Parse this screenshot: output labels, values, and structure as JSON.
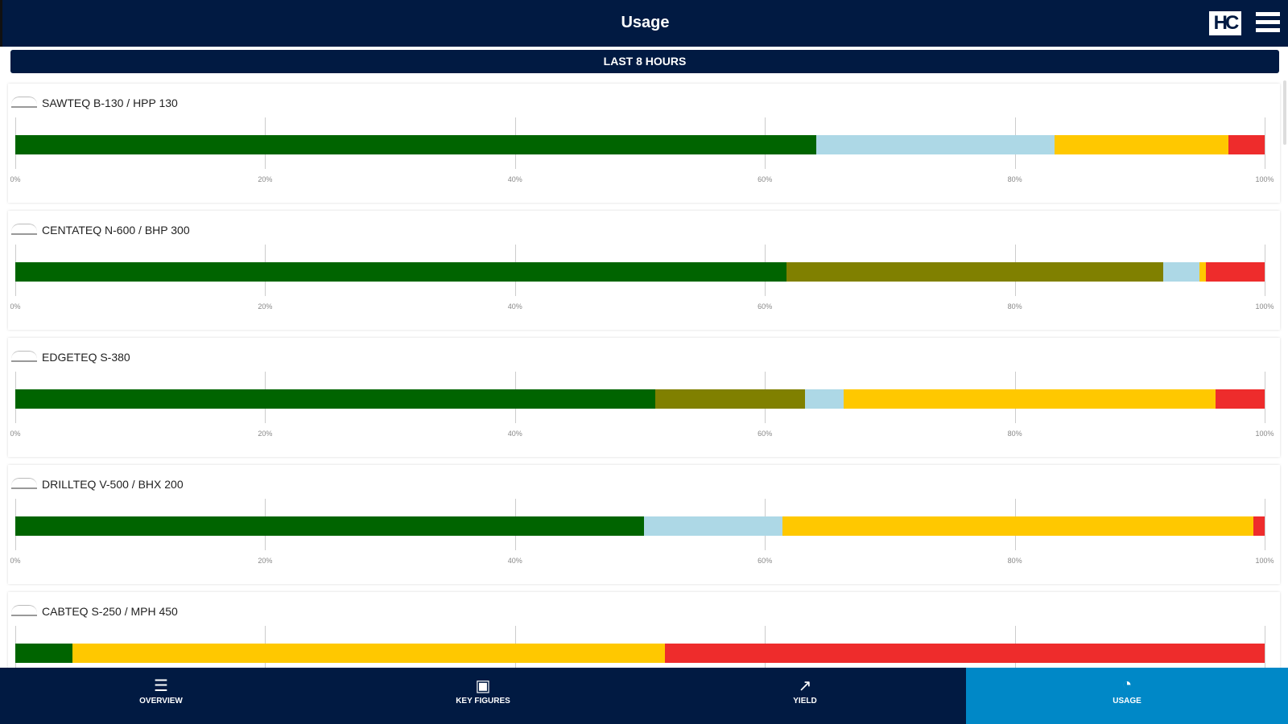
{
  "header": {
    "title": "Usage",
    "logo": "HC"
  },
  "banner": "LAST 8 HOURS",
  "ticks": [
    "0%",
    "20%",
    "40%",
    "60%",
    "80%",
    "100%"
  ],
  "colors": {
    "green": "#006400",
    "olive": "#808000",
    "lightblue": "#add8e6",
    "yellow": "#ffc800",
    "red": "#ee2c2c"
  },
  "machines": [
    {
      "name": "SAWTEQ B-130 / HPP 130",
      "segments": [
        {
          "color": "green",
          "pct": 64.1
        },
        {
          "color": "lightblue",
          "pct": 19.1
        },
        {
          "color": "yellow",
          "pct": 13.9
        },
        {
          "color": "red",
          "pct": 2.9
        }
      ]
    },
    {
      "name": "CENTATEQ N-600 / BHP 300",
      "segments": [
        {
          "color": "green",
          "pct": 61.7
        },
        {
          "color": "olive",
          "pct": 30.2
        },
        {
          "color": "lightblue",
          "pct": 2.9
        },
        {
          "color": "yellow",
          "pct": 0.5
        },
        {
          "color": "red",
          "pct": 4.7
        }
      ]
    },
    {
      "name": "EDGETEQ S-380",
      "segments": [
        {
          "color": "green",
          "pct": 51.2
        },
        {
          "color": "olive",
          "pct": 12.0
        },
        {
          "color": "lightblue",
          "pct": 3.1
        },
        {
          "color": "yellow",
          "pct": 29.8
        },
        {
          "color": "red",
          "pct": 3.9
        }
      ]
    },
    {
      "name": "DRILLTEQ V-500 / BHX 200",
      "segments": [
        {
          "color": "green",
          "pct": 50.3
        },
        {
          "color": "lightblue",
          "pct": 11.1
        },
        {
          "color": "yellow",
          "pct": 37.7
        },
        {
          "color": "red",
          "pct": 0.9
        }
      ]
    },
    {
      "name": "CABTEQ S-250 / MPH 450",
      "segments": [
        {
          "color": "green",
          "pct": 4.6
        },
        {
          "color": "yellow",
          "pct": 47.4
        },
        {
          "color": "red",
          "pct": 48.0
        }
      ]
    }
  ],
  "nav": [
    {
      "label": "OVERVIEW",
      "icon": "list-icon",
      "glyph": "☰",
      "active": false
    },
    {
      "label": "KEY FIGURES",
      "icon": "chart-icon",
      "glyph": "▣",
      "active": false
    },
    {
      "label": "YIELD",
      "icon": "trend-icon",
      "glyph": "↗",
      "active": false
    },
    {
      "label": "USAGE",
      "icon": "gauge-icon",
      "glyph": "◔",
      "active": true
    }
  ]
}
